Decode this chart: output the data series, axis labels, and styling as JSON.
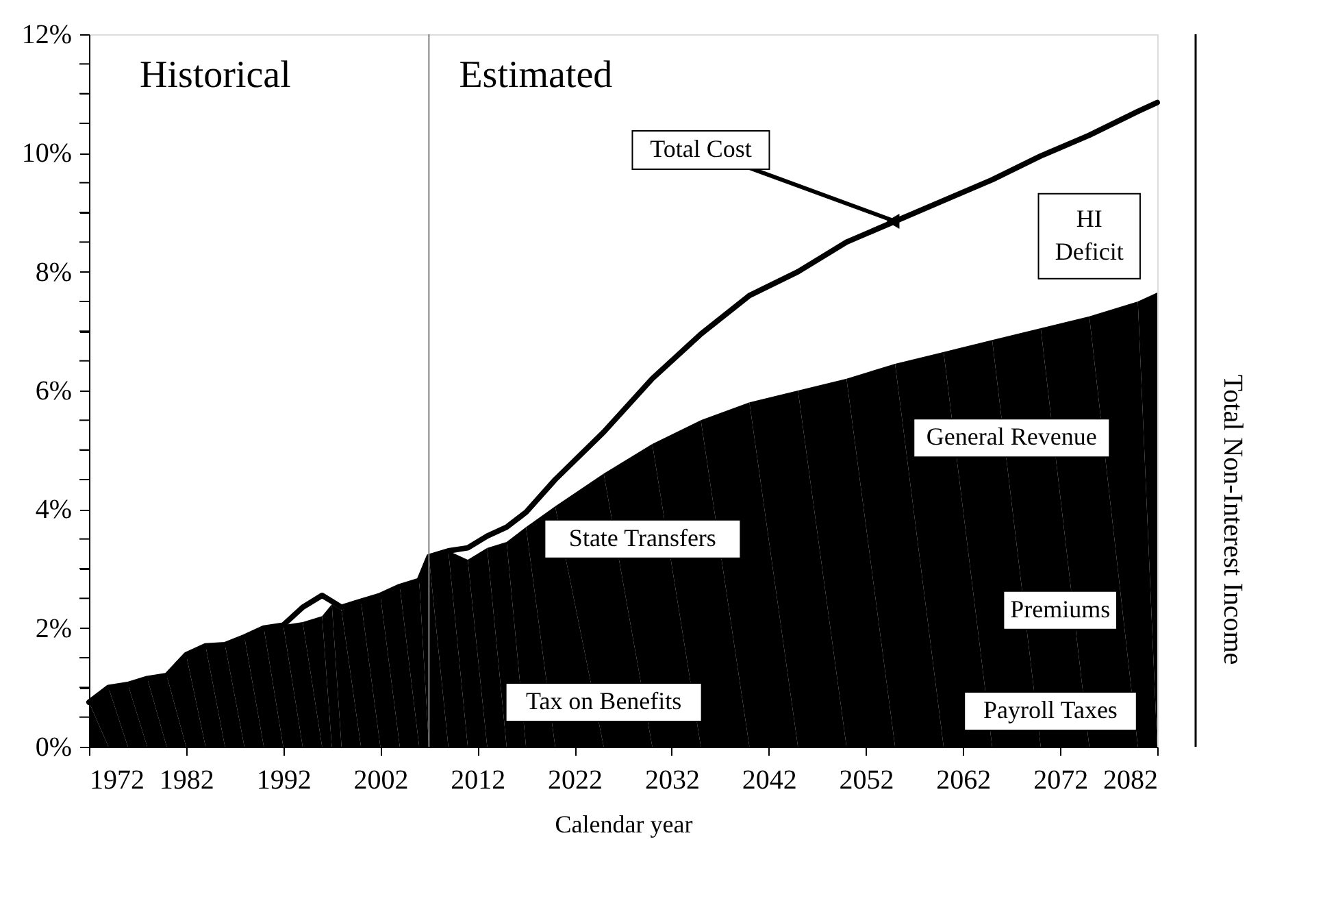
{
  "chart_data": {
    "type": "area",
    "xlabel": "Calendar year",
    "x": [
      1972,
      1974,
      1976,
      1978,
      1980,
      1982,
      1984,
      1986,
      1988,
      1990,
      1992,
      1994,
      1996,
      1997,
      1998,
      2000,
      2002,
      2004,
      2006,
      2007,
      2009,
      2011,
      2013,
      2015,
      2017,
      2020,
      2025,
      2030,
      2035,
      2040,
      2045,
      2050,
      2055,
      2060,
      2065,
      2070,
      2075,
      2080,
      2082
    ],
    "series": [
      {
        "name": "Total Non-Interest Income",
        "type": "area",
        "color": "#000000",
        "values": [
          0.75,
          1.0,
          1.05,
          1.15,
          1.2,
          1.55,
          1.7,
          1.72,
          1.85,
          2.0,
          2.05,
          2.1,
          2.2,
          2.4,
          2.3,
          2.45,
          2.55,
          2.7,
          2.8,
          3.2,
          3.3,
          3.15,
          3.35,
          3.45,
          3.7,
          4.05,
          4.6,
          5.1,
          5.5,
          5.8,
          6.0,
          6.2,
          6.45,
          6.65,
          6.85,
          7.05,
          7.25,
          7.5,
          7.65
        ]
      },
      {
        "name": "Total Cost",
        "type": "line",
        "color": "#000000",
        "values": [
          0.75,
          1.0,
          1.05,
          1.15,
          1.2,
          1.55,
          1.7,
          1.72,
          1.85,
          2.0,
          2.05,
          2.35,
          2.55,
          2.45,
          2.35,
          2.45,
          2.55,
          2.7,
          2.8,
          3.2,
          3.3,
          3.35,
          3.55,
          3.7,
          3.95,
          4.5,
          5.3,
          6.2,
          6.95,
          7.6,
          8.0,
          8.5,
          8.85,
          9.2,
          9.55,
          9.95,
          10.3,
          10.7,
          10.85
        ]
      }
    ],
    "xlim": [
      1972,
      2082
    ],
    "xticks": [
      1972,
      1982,
      1992,
      2002,
      2012,
      2022,
      2032,
      2042,
      2052,
      2062,
      2072,
      2082
    ],
    "ylim": [
      0,
      12
    ],
    "yticks": [
      {
        "value": 0,
        "label": "0%"
      },
      {
        "value": 0.5,
        "label": null
      },
      {
        "value": 1,
        "label": null
      },
      {
        "value": 1.5,
        "label": null
      },
      {
        "value": 2,
        "label": "2%"
      },
      {
        "value": 2.5,
        "label": null
      },
      {
        "value": 3,
        "label": null
      },
      {
        "value": 3.5,
        "label": null
      },
      {
        "value": 4,
        "label": "4%"
      },
      {
        "value": 4.5,
        "label": null
      },
      {
        "value": 5,
        "label": null
      },
      {
        "value": 5.5,
        "label": null
      },
      {
        "value": 6,
        "label": "6%"
      },
      {
        "value": 6.5,
        "label": null
      },
      {
        "value": 7,
        "label": null
      },
      {
        "value": 7.5,
        "label": null
      },
      {
        "value": 8,
        "label": "8%"
      },
      {
        "value": 8.5,
        "label": null
      },
      {
        "value": 9,
        "label": null
      },
      {
        "value": 9.5,
        "label": null
      },
      {
        "value": 10,
        "label": "10%"
      },
      {
        "value": 10.5,
        "label": null
      },
      {
        "value": 11,
        "label": null
      },
      {
        "value": 11.5,
        "label": null
      },
      {
        "value": 12,
        "label": "12%"
      }
    ],
    "ref_lines": [
      {
        "axis": "x",
        "value": 2007,
        "color": "#808080"
      }
    ],
    "annotations": [
      "Historical",
      "Estimated",
      "HI Deficit",
      "General Revenue",
      "State Transfers",
      "Premiums",
      "Tax on Benefits",
      "Payroll Taxes"
    ],
    "grid": false
  }
}
